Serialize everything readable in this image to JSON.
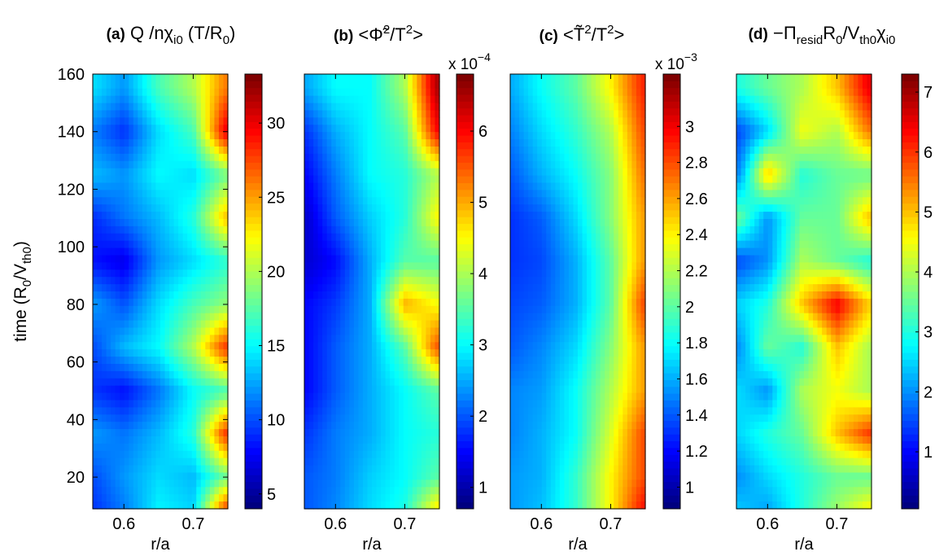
{
  "chart_data": [
    {
      "type": "heatmap",
      "title_parts": [
        {
          "t": "(a)",
          "bold": true
        },
        {
          "t": " Q /nχ"
        },
        {
          "t": "i0",
          "sub": true
        },
        {
          "t": " (T/R"
        },
        {
          "t": "0",
          "sub": true
        },
        {
          "t": ")"
        }
      ],
      "xlabel": "r/a",
      "ylabel_parts": [
        {
          "t": "time (R"
        },
        {
          "t": "0",
          "sub": true
        },
        {
          "t": "/V"
        },
        {
          "t": "th0",
          "sub": true
        },
        {
          "t": ")"
        }
      ],
      "xlim": [
        0.555,
        0.75
      ],
      "ylim": [
        9,
        160
      ],
      "xticks": [
        0.6,
        0.7
      ],
      "yticks": [
        20,
        40,
        60,
        80,
        100,
        120,
        140,
        160
      ],
      "colormap": "jet",
      "clim": [
        4,
        33.3
      ],
      "cbar_ticks": [
        5,
        10,
        15,
        20,
        25,
        30
      ],
      "cbar_exponent": "",
      "grid_r": [
        0.56,
        0.6,
        0.65,
        0.7,
        0.745
      ],
      "grid_time": [
        155,
        140,
        125,
        110,
        95,
        80,
        65,
        50,
        35,
        20,
        5
      ],
      "z": [
        [
          14,
          12,
          17,
          20,
          26
        ],
        [
          11,
          9,
          14,
          17,
          30
        ],
        [
          13,
          12,
          15,
          14,
          18
        ],
        [
          9,
          11,
          13,
          16,
          24
        ],
        [
          8,
          7,
          12,
          14,
          16
        ],
        [
          12,
          10,
          14,
          17,
          19
        ],
        [
          10,
          13,
          15,
          20,
          28
        ],
        [
          9,
          8,
          11,
          15,
          17
        ],
        [
          12,
          11,
          13,
          16,
          28
        ],
        [
          10,
          12,
          14,
          13,
          18
        ],
        [
          9,
          11,
          15,
          14,
          31
        ]
      ]
    },
    {
      "type": "heatmap",
      "title_parts": [
        {
          "t": "(b)",
          "bold": true
        },
        {
          "t": " <Φ̃"
        },
        {
          "t": "2",
          "sup": true
        },
        {
          "t": "/T"
        },
        {
          "t": "2",
          "sup": true
        },
        {
          "t": ">"
        }
      ],
      "xlabel": "r/a",
      "xlim": [
        0.555,
        0.75
      ],
      "ylim": [
        9,
        160
      ],
      "xticks": [
        0.6,
        0.7
      ],
      "colormap": "jet",
      "clim": [
        0.7,
        6.8
      ],
      "cbar_ticks": [
        1,
        2,
        3,
        4,
        5,
        6
      ],
      "cbar_exponent": "-4",
      "grid_r": [
        0.56,
        0.6,
        0.65,
        0.7,
        0.745
      ],
      "grid_time": [
        155,
        140,
        125,
        110,
        95,
        80,
        65,
        50,
        35,
        20,
        5
      ],
      "z": [
        [
          2.5,
          3,
          3,
          4,
          6.5
        ],
        [
          1.8,
          2.5,
          3,
          3.5,
          6
        ],
        [
          1.5,
          2.2,
          3,
          3.2,
          4
        ],
        [
          1.2,
          2,
          2.7,
          3.2,
          4.5
        ],
        [
          1.2,
          1.5,
          2.5,
          3.5,
          3.5
        ],
        [
          1.5,
          1.8,
          2.5,
          5,
          4.5
        ],
        [
          1.5,
          2,
          2.5,
          3.5,
          5.5
        ],
        [
          1.5,
          2,
          2.5,
          3,
          3.5
        ],
        [
          1.8,
          2.2,
          2.5,
          3,
          3.2
        ],
        [
          2,
          2.2,
          2.7,
          3,
          3.5
        ],
        [
          2,
          2.3,
          2.8,
          3.2,
          5
        ]
      ]
    },
    {
      "type": "heatmap",
      "title_parts": [
        {
          "t": "(c)",
          "bold": true
        },
        {
          "t": "   <T̃"
        },
        {
          "t": "2",
          "sup": true
        },
        {
          "t": "/T"
        },
        {
          "t": "2",
          "sup": true
        },
        {
          "t": ">"
        }
      ],
      "xlabel": "r/a",
      "xlim": [
        0.555,
        0.75
      ],
      "ylim": [
        9,
        160
      ],
      "xticks": [
        0.6,
        0.7
      ],
      "colormap": "jet",
      "clim": [
        0.88,
        3.29
      ],
      "cbar_ticks": [
        1,
        1.2,
        1.4,
        1.6,
        1.8,
        2,
        2.2,
        2.4,
        2.6,
        2.8,
        3
      ],
      "cbar_exponent": "-3",
      "grid_r": [
        0.56,
        0.6,
        0.65,
        0.7,
        0.745
      ],
      "grid_time": [
        155,
        140,
        125,
        110,
        95,
        80,
        65,
        50,
        35,
        20,
        5
      ],
      "z": [
        [
          1.6,
          1.8,
          2.0,
          2.4,
          2.9
        ],
        [
          1.5,
          1.7,
          1.9,
          2.2,
          2.8
        ],
        [
          1.4,
          1.6,
          1.8,
          2.1,
          2.7
        ],
        [
          1.3,
          1.4,
          1.7,
          2.1,
          2.6
        ],
        [
          1.3,
          1.35,
          1.6,
          2.0,
          2.6
        ],
        [
          1.35,
          1.4,
          1.6,
          2.0,
          2.8
        ],
        [
          1.4,
          1.5,
          1.7,
          2.1,
          2.6
        ],
        [
          1.5,
          1.55,
          1.8,
          2.2,
          2.6
        ],
        [
          1.5,
          1.6,
          1.8,
          2.3,
          2.8
        ],
        [
          1.55,
          1.6,
          1.9,
          2.4,
          2.8
        ],
        [
          1.55,
          1.65,
          1.9,
          2.4,
          3.0
        ]
      ]
    },
    {
      "type": "heatmap",
      "title_parts": [
        {
          "t": "(d)",
          "bold": true
        },
        {
          "t": " −Π"
        },
        {
          "t": "resid",
          "sub": true
        },
        {
          "t": "R"
        },
        {
          "t": "0",
          "sub": true
        },
        {
          "t": "/V"
        },
        {
          "t": "th0",
          "sub": true
        },
        {
          "t": "χ"
        },
        {
          "t": "i0",
          "sub": true
        }
      ],
      "xlabel": "r/a",
      "xlim": [
        0.555,
        0.75
      ],
      "ylim": [
        9,
        160
      ],
      "xticks": [
        0.6,
        0.7
      ],
      "colormap": "jet",
      "clim": [
        0.05,
        7.3
      ],
      "cbar_ticks": [
        1,
        2,
        3,
        4,
        5,
        6,
        7
      ],
      "cbar_exponent": "",
      "grid_r": [
        0.56,
        0.6,
        0.65,
        0.7,
        0.745
      ],
      "grid_time": [
        155,
        140,
        125,
        110,
        95,
        80,
        65,
        50,
        35,
        20,
        5
      ],
      "z": [
        [
          3,
          3.5,
          4,
          5,
          6.5
        ],
        [
          1.5,
          2.5,
          4.5,
          4,
          5.5
        ],
        [
          2,
          5,
          3,
          3.5,
          3.5
        ],
        [
          3.5,
          2,
          3.5,
          3.5,
          5
        ],
        [
          1.5,
          2,
          4,
          3.5,
          3
        ],
        [
          2.5,
          3,
          5,
          6.5,
          5
        ],
        [
          2,
          3.5,
          3,
          5,
          4
        ],
        [
          2.5,
          2,
          4,
          4.5,
          4
        ],
        [
          2.5,
          3,
          3.5,
          5,
          6
        ],
        [
          2,
          2.5,
          3,
          3.5,
          3.5
        ],
        [
          2.5,
          2,
          3,
          4,
          5
        ]
      ]
    }
  ],
  "exponent_prefix": "x 10"
}
